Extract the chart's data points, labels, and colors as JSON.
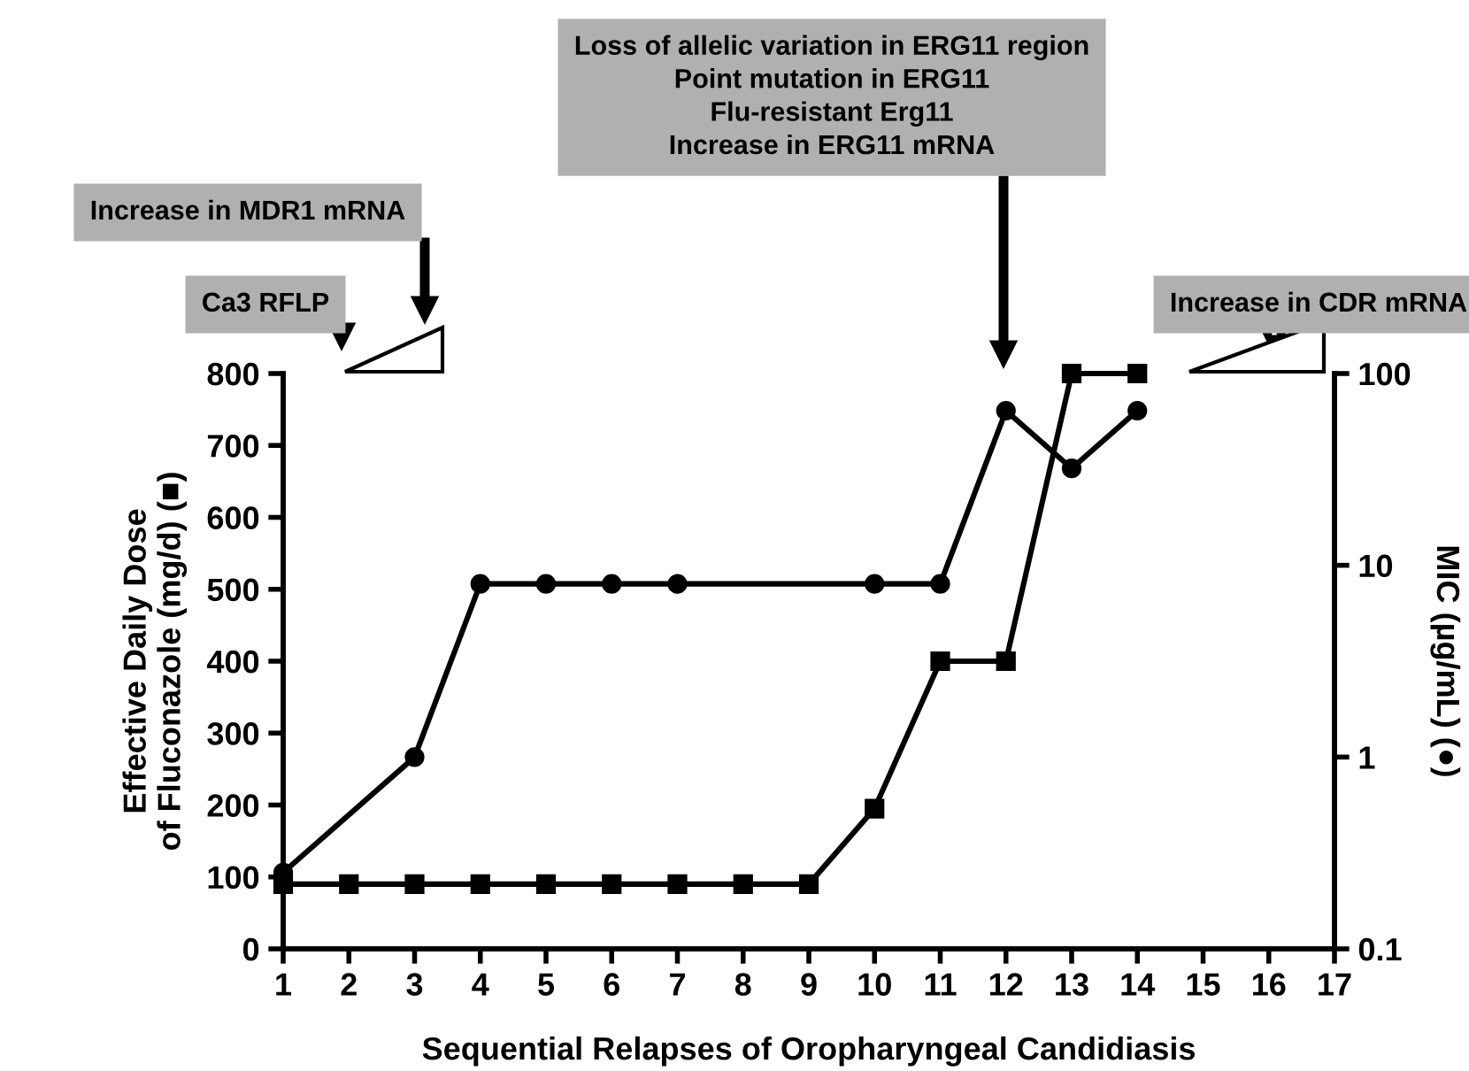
{
  "chart_data": {
    "type": "line",
    "xlabel": "Sequential Relapses of Oropharyngeal Candidiasis",
    "ylabel": "Effective Daily Dose\nof Fluconazole (mg/d) (■)",
    "y2label": "MIC (µg/mL) (●)",
    "x": [
      1,
      2,
      3,
      4,
      5,
      6,
      7,
      8,
      9,
      10,
      11,
      12,
      13,
      14
    ],
    "series": [
      {
        "color": "#000000",
        "marker": "square",
        "values": [
          90,
          90,
          90,
          90,
          90,
          90,
          90,
          90,
          90,
          195,
          400,
          400,
          800,
          800
        ]
      },
      {
        "color": "#000000",
        "marker": "circle",
        "axis": "y2",
        "x": [
          1,
          3,
          4,
          5,
          6,
          7,
          10,
          11,
          12,
          13,
          14
        ],
        "values": [
          0.25,
          1,
          8,
          8,
          8,
          8,
          8,
          8,
          64,
          32,
          64
        ]
      }
    ],
    "xlim": [
      1,
      17
    ],
    "xticks": [
      1,
      2,
      3,
      4,
      5,
      6,
      7,
      8,
      9,
      10,
      11,
      12,
      13,
      14,
      15,
      16,
      17
    ],
    "ylim": [
      0,
      800
    ],
    "yticks": [
      0,
      100,
      200,
      300,
      400,
      500,
      600,
      700,
      800
    ],
    "y2lim": [
      0.1,
      100
    ],
    "y2ticks": [
      0.1,
      1,
      10,
      100
    ],
    "log": "y2",
    "grid": false,
    "legend": false,
    "line_style": "solid",
    "annotations": [
      "Ca3 RFLP",
      "Increase in MDR1 mRNA",
      "Loss of allelic variation in ERG11 region\nPoint mutation in ERG11\nFlu-resistant Erg11\nIncrease in ERG11 mRNA",
      "Increase in CDR mRNA"
    ]
  }
}
